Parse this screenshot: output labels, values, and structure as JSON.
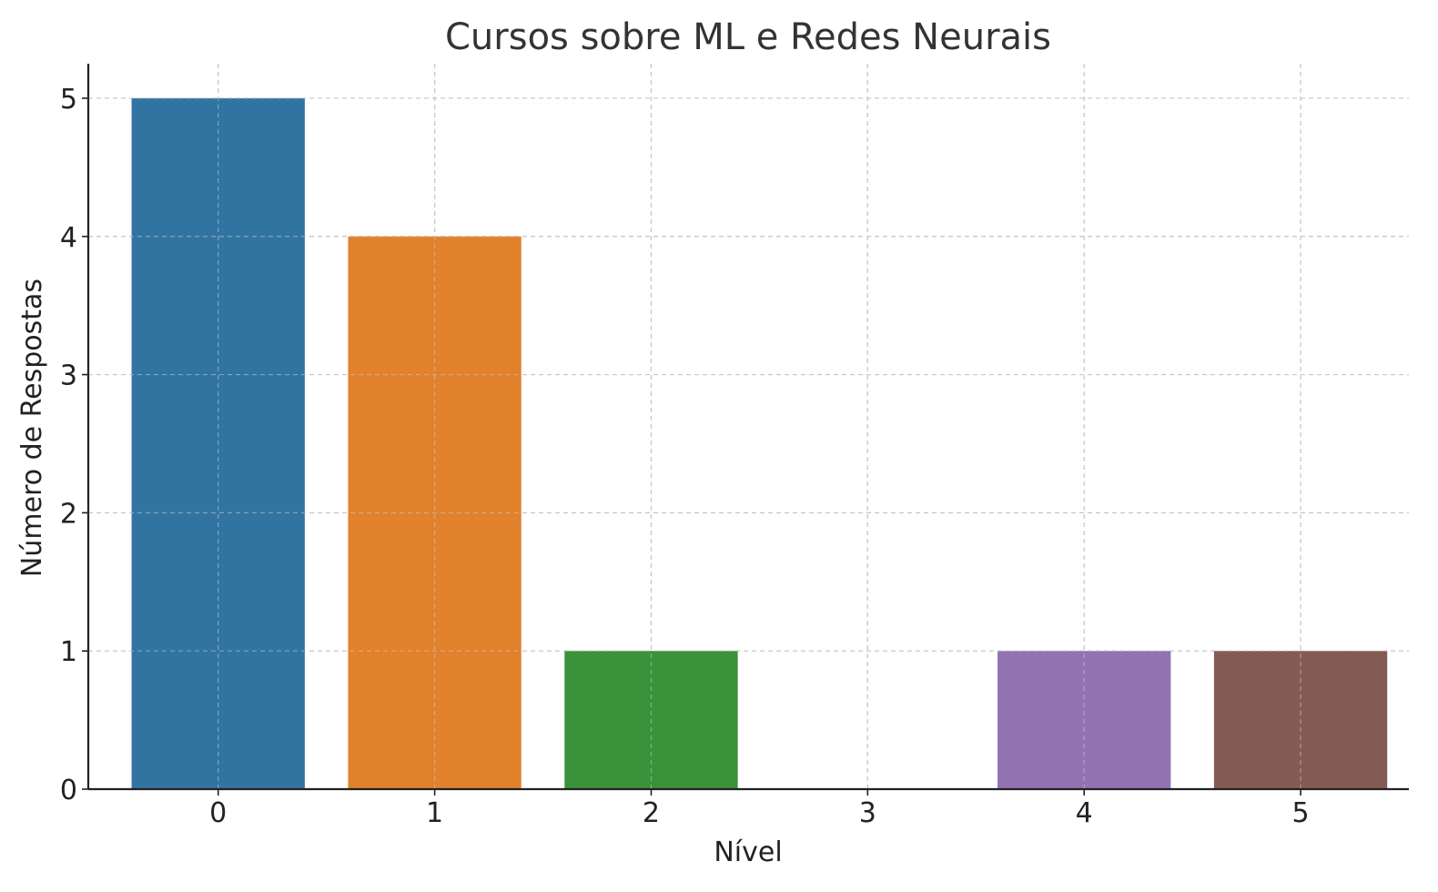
{
  "chart_data": {
    "type": "bar",
    "title": "Cursos sobre ML e Redes Neurais",
    "xlabel": "Nível",
    "ylabel": "Número de Respostas",
    "categories": [
      "0",
      "1",
      "2",
      "3",
      "4",
      "5"
    ],
    "values": [
      5,
      4,
      1,
      0,
      1,
      1
    ],
    "colors": [
      "#3274a1",
      "#e1812c",
      "#3a923a",
      "#c03d3e",
      "#9372b2",
      "#845b53"
    ],
    "ylim": [
      0,
      5.25
    ],
    "yticks": [
      "0",
      "1",
      "2",
      "3",
      "4",
      "5"
    ],
    "grid": true,
    "legend": "none"
  }
}
